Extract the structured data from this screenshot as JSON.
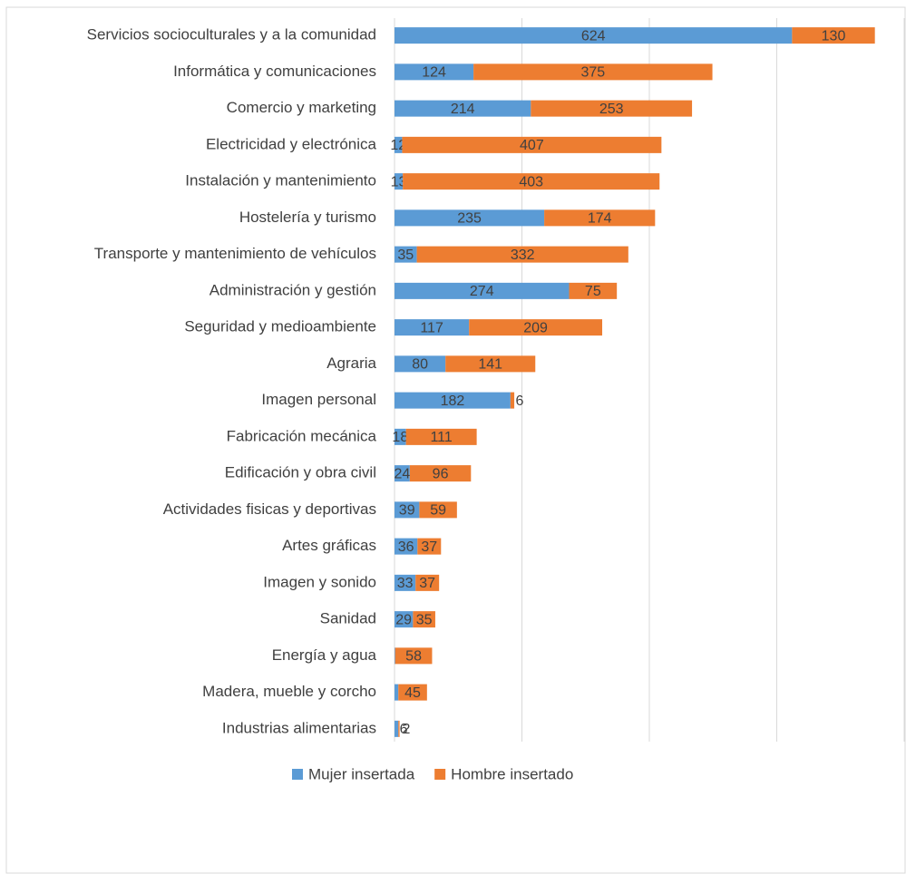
{
  "chart_data": {
    "type": "bar",
    "orientation": "horizontal",
    "stacked": true,
    "categories": [
      "Servicios socioculturales y a la comunidad",
      "Informática  y comunicaciones",
      "Comercio y marketing",
      "Electricidad y electrónica",
      "Instalación y mantenimiento",
      "Hostelería y turismo",
      "Transporte y mantenimiento de vehículos",
      "Administración y gestión",
      "Seguridad y medioambiente",
      "Agraria",
      "Imagen personal",
      "Fabricación mecánica",
      "Edificación y obra civil",
      "Actividades fisicas y deportivas",
      "Artes gráficas",
      "Imagen y sonido",
      "Sanidad",
      "Energía y agua",
      "Madera, mueble y corcho",
      "Industrias alimentarias"
    ],
    "series": [
      {
        "name": "Mujer insertada",
        "color": "#5b9bd5",
        "values": [
          624,
          124,
          214,
          12,
          13,
          235,
          35,
          274,
          117,
          80,
          182,
          18,
          24,
          39,
          36,
          33,
          29,
          1,
          6,
          6
        ]
      },
      {
        "name": "Hombre insertado",
        "color": "#ed7d31",
        "values": [
          130,
          375,
          253,
          407,
          403,
          174,
          332,
          75,
          209,
          141,
          6,
          111,
          96,
          59,
          37,
          37,
          35,
          58,
          45,
          2
        ]
      }
    ],
    "xlim": [
      0,
      800
    ],
    "xticks": [
      0,
      200,
      400,
      600,
      800
    ],
    "grid": true,
    "legend": "bottom"
  }
}
